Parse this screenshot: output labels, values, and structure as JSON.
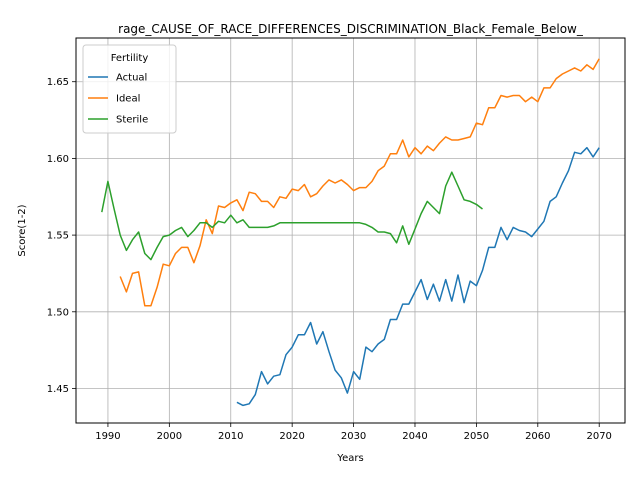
{
  "chart_data": {
    "type": "line",
    "title": "rage_CAUSE_OF_RACE_DIFFERENCES_DISCRIMINATION_Black_Female_Below_",
    "xlabel": "Years",
    "ylabel": "Score(1-2)",
    "xlim": [
      1984.8,
      2074.2
    ],
    "ylim": [
      1.4275,
      1.6785
    ],
    "xticks": [
      1990,
      2000,
      2010,
      2020,
      2030,
      2040,
      2050,
      2060,
      2070
    ],
    "yticks": [
      1.45,
      1.5,
      1.55,
      1.6,
      1.65
    ],
    "ytick_labels": [
      "1.45",
      "1.50",
      "1.55",
      "1.60",
      "1.65"
    ],
    "grid": true,
    "legend": {
      "title": "Fertility",
      "position": "top-left"
    },
    "series": [
      {
        "name": "Actual",
        "color": "#1f77b4",
        "x": [
          2011,
          2012,
          2013,
          2014,
          2015,
          2016,
          2017,
          2018,
          2019,
          2020,
          2021,
          2022,
          2023,
          2024,
          2025,
          2026,
          2027,
          2028,
          2029,
          2030,
          2031,
          2032,
          2033,
          2034,
          2035,
          2036,
          2037,
          2038,
          2039,
          2040,
          2041,
          2042,
          2043,
          2044,
          2045,
          2046,
          2047,
          2048,
          2049,
          2050,
          2051,
          2052,
          2053,
          2054,
          2055,
          2056,
          2057,
          2058,
          2059,
          2060,
          2061,
          2062,
          2063,
          2064,
          2065,
          2066,
          2067,
          2068,
          2069,
          2070
        ],
        "y": [
          1.441,
          1.439,
          1.44,
          1.446,
          1.461,
          1.453,
          1.458,
          1.459,
          1.472,
          1.477,
          1.485,
          1.485,
          1.493,
          1.479,
          1.487,
          1.474,
          1.462,
          1.457,
          1.447,
          1.461,
          1.456,
          1.477,
          1.474,
          1.479,
          1.482,
          1.495,
          1.495,
          1.505,
          1.505,
          1.513,
          1.521,
          1.508,
          1.518,
          1.507,
          1.521,
          1.507,
          1.524,
          1.506,
          1.52,
          1.517,
          1.527,
          1.542,
          1.542,
          1.555,
          1.547,
          1.555,
          1.553,
          1.552,
          1.549,
          1.554,
          1.559,
          1.572,
          1.575,
          1.584,
          1.592,
          1.604,
          1.603,
          1.607,
          1.601,
          1.607
        ]
      },
      {
        "name": "Ideal",
        "color": "#ff7f0e",
        "x": [
          1992,
          1993,
          1994,
          1995,
          1996,
          1997,
          1998,
          1999,
          2000,
          2001,
          2002,
          2003,
          2004,
          2005,
          2006,
          2007,
          2008,
          2009,
          2010,
          2011,
          2012,
          2013,
          2014,
          2015,
          2016,
          2017,
          2018,
          2019,
          2020,
          2021,
          2022,
          2023,
          2024,
          2025,
          2026,
          2027,
          2028,
          2029,
          2030,
          2031,
          2032,
          2033,
          2034,
          2035,
          2036,
          2037,
          2038,
          2039,
          2040,
          2041,
          2042,
          2043,
          2044,
          2045,
          2046,
          2047,
          2048,
          2049,
          2050,
          2051,
          2052,
          2053,
          2054,
          2055,
          2056,
          2057,
          2058,
          2059,
          2060,
          2061,
          2062,
          2063,
          2064,
          2065,
          2066,
          2067,
          2068,
          2069,
          2070
        ],
        "y": [
          1.523,
          1.513,
          1.525,
          1.526,
          1.504,
          1.504,
          1.516,
          1.531,
          1.53,
          1.538,
          1.542,
          1.542,
          1.532,
          1.543,
          1.56,
          1.551,
          1.569,
          1.568,
          1.571,
          1.573,
          1.566,
          1.578,
          1.577,
          1.572,
          1.572,
          1.568,
          1.575,
          1.574,
          1.58,
          1.579,
          1.583,
          1.575,
          1.577,
          1.582,
          1.586,
          1.584,
          1.586,
          1.583,
          1.579,
          1.581,
          1.581,
          1.585,
          1.592,
          1.595,
          1.603,
          1.603,
          1.612,
          1.601,
          1.607,
          1.603,
          1.608,
          1.605,
          1.61,
          1.614,
          1.612,
          1.612,
          1.613,
          1.614,
          1.623,
          1.622,
          1.633,
          1.633,
          1.641,
          1.64,
          1.641,
          1.641,
          1.637,
          1.64,
          1.637,
          1.646,
          1.646,
          1.652,
          1.655,
          1.657,
          1.659,
          1.657,
          1.661,
          1.658,
          1.665
        ]
      },
      {
        "name": "Sterile",
        "color": "#2ca02c",
        "x": [
          1989,
          1990,
          1991,
          1992,
          1993,
          1994,
          1995,
          1996,
          1997,
          1998,
          1999,
          2000,
          2001,
          2002,
          2003,
          2004,
          2005,
          2006,
          2007,
          2008,
          2009,
          2010,
          2011,
          2012,
          2013,
          2014,
          2015,
          2016,
          2017,
          2018,
          2019,
          2020,
          2021,
          2022,
          2023,
          2024,
          2025,
          2026,
          2027,
          2028,
          2029,
          2030,
          2031,
          2032,
          2033,
          2034,
          2035,
          2036,
          2037,
          2038,
          2039,
          2040,
          2041,
          2042,
          2043,
          2044,
          2045,
          2046,
          2047,
          2048,
          2049,
          2050,
          2051
        ],
        "y": [
          1.565,
          1.585,
          1.567,
          1.55,
          1.54,
          1.547,
          1.552,
          1.538,
          1.534,
          1.542,
          1.549,
          1.55,
          1.553,
          1.555,
          1.549,
          1.553,
          1.558,
          1.558,
          1.555,
          1.559,
          1.558,
          1.563,
          1.558,
          1.56,
          1.555,
          1.555,
          1.555,
          1.555,
          1.556,
          1.558,
          1.558,
          1.558,
          1.558,
          1.558,
          1.558,
          1.558,
          1.558,
          1.558,
          1.558,
          1.558,
          1.558,
          1.558,
          1.558,
          1.557,
          1.555,
          1.552,
          1.552,
          1.551,
          1.545,
          1.556,
          1.544,
          1.554,
          1.564,
          1.572,
          1.568,
          1.564,
          1.582,
          1.591,
          1.582,
          1.573,
          1.572,
          1.57,
          1.567
        ]
      }
    ]
  }
}
